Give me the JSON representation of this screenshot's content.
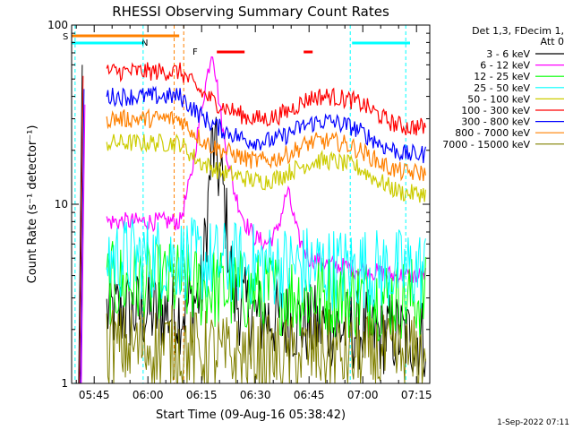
{
  "chart_data": {
    "type": "line",
    "title": "RHESSI Observing Summary Count Rates",
    "xlabel": "Start Time (09-Aug-16 05:38:42)",
    "ylabel": "Count Rate (s⁻¹ detector⁻¹)",
    "yscale": "log",
    "ylim": [
      1,
      100
    ],
    "y_ticks": [
      "1",
      "10",
      "100"
    ],
    "xlim": [
      "05:38:42",
      "07:18:42"
    ],
    "x_ticks": [
      "05:45",
      "06:00",
      "06:15",
      "06:30",
      "06:45",
      "07:00",
      "07:15"
    ],
    "grid": false,
    "legend_position": "right",
    "legend_header": [
      "Det 1,3, FDecim 1,",
      "Att 0"
    ],
    "footer_date": "1-Sep-2022 07:11",
    "flag_labels": {
      "saa": "S",
      "night": "N",
      "flare": "F"
    },
    "data_gap": [
      "05:41:00",
      "06:08:00"
    ],
    "series": [
      {
        "name": "3 - 6 keV",
        "color": "#000000",
        "x": [
          "06:09",
          "06:12",
          "06:15",
          "06:18",
          "06:21",
          "06:24",
          "06:27",
          "06:30",
          "06:33",
          "06:36",
          "06:39",
          "06:42",
          "06:45",
          "06:48",
          "06:51",
          "06:54",
          "06:57",
          "07:00",
          "07:03",
          "07:06",
          "07:09",
          "07:12"
        ],
        "values": [
          2.5,
          2.8,
          3.2,
          22,
          12,
          3.0,
          2.6,
          2.4,
          2.3,
          2.3,
          2.2,
          2.2,
          2.1,
          2.1,
          2.1,
          2.0,
          2.0,
          2.0,
          1.9,
          1.9,
          1.9,
          1.8
        ]
      },
      {
        "name": "6 - 12 keV",
        "color": "#ff00ff",
        "x": [
          "06:09",
          "06:12",
          "06:15",
          "06:18",
          "06:21",
          "06:24",
          "06:27",
          "06:30",
          "06:33",
          "06:36",
          "06:39",
          "06:42",
          "06:45",
          "06:48",
          "06:51",
          "06:54",
          "06:57",
          "07:00",
          "07:03",
          "07:06",
          "07:09",
          "07:12"
        ],
        "values": [
          8,
          14,
          35,
          75,
          25,
          12,
          8,
          6.5,
          6,
          7,
          12,
          6.5,
          5,
          4.8,
          4.6,
          4.5,
          4.4,
          4.3,
          4.2,
          4.1,
          4.0,
          4.0
        ]
      },
      {
        "name": "12 - 25 keV",
        "color": "#00ff00",
        "x": [
          "06:09",
          "06:12",
          "06:15",
          "06:18",
          "06:21",
          "06:24",
          "06:27",
          "06:30",
          "06:33",
          "06:36",
          "06:39",
          "06:42",
          "06:45",
          "06:48",
          "06:51",
          "06:54",
          "06:57",
          "07:00",
          "07:03",
          "07:06",
          "07:09",
          "07:12"
        ],
        "values": [
          3.6,
          3.5,
          3.4,
          3.4,
          3.3,
          3.3,
          3.3,
          3.2,
          3.2,
          3.2,
          3.2,
          3.1,
          3.1,
          3.1,
          3.1,
          3.1,
          3.0,
          3.0,
          3.0,
          3.0,
          3.0,
          3.0
        ]
      },
      {
        "name": "25 - 50 keV",
        "color": "#00ffff",
        "x": [
          "06:09",
          "06:12",
          "06:15",
          "06:18",
          "06:21",
          "06:24",
          "06:27",
          "06:30",
          "06:33",
          "06:36",
          "06:39",
          "06:42",
          "06:45",
          "06:48",
          "06:51",
          "06:54",
          "06:57",
          "07:00",
          "07:03",
          "07:06",
          "07:09",
          "07:12"
        ],
        "values": [
          5.0,
          4.9,
          4.8,
          4.8,
          4.7,
          4.7,
          4.6,
          4.6,
          4.6,
          4.5,
          4.5,
          4.5,
          4.5,
          4.5,
          4.4,
          4.4,
          4.4,
          4.4,
          4.3,
          4.3,
          4.3,
          4.3
        ]
      },
      {
        "name": "50 - 100 keV",
        "color": "#cccc00",
        "x": [
          "06:09",
          "06:12",
          "06:15",
          "06:18",
          "06:21",
          "06:24",
          "06:27",
          "06:30",
          "06:33",
          "06:36",
          "06:39",
          "06:42",
          "06:45",
          "06:48",
          "06:51",
          "06:54",
          "06:57",
          "07:00",
          "07:03",
          "07:06",
          "07:09",
          "07:12"
        ],
        "values": [
          22,
          19,
          17,
          16,
          15,
          14.5,
          14,
          13.5,
          13.5,
          14,
          15,
          16,
          17,
          17.5,
          17.5,
          17,
          16.5,
          15.5,
          14,
          13,
          12,
          11.5
        ]
      },
      {
        "name": "100 - 300 keV",
        "color": "#ff0000",
        "x": [
          "06:09",
          "06:12",
          "06:15",
          "06:18",
          "06:21",
          "06:24",
          "06:27",
          "06:30",
          "06:33",
          "06:36",
          "06:39",
          "06:42",
          "06:45",
          "06:48",
          "06:51",
          "06:54",
          "06:57",
          "07:00",
          "07:03",
          "07:06",
          "07:09",
          "07:12"
        ],
        "values": [
          55,
          48,
          42,
          38,
          35,
          33,
          31,
          30,
          30,
          31,
          33,
          36,
          39,
          40,
          40,
          39,
          38,
          36,
          33,
          30,
          28,
          27
        ]
      },
      {
        "name": "300 - 800 keV",
        "color": "#0000ff",
        "x": [
          "06:09",
          "06:12",
          "06:15",
          "06:18",
          "06:21",
          "06:24",
          "06:27",
          "06:30",
          "06:33",
          "06:36",
          "06:39",
          "06:42",
          "06:45",
          "06:48",
          "06:51",
          "06:54",
          "06:57",
          "07:00",
          "07:03",
          "07:06",
          "07:09",
          "07:12"
        ],
        "values": [
          40,
          35,
          31,
          28,
          26,
          24.5,
          23,
          22.5,
          22.5,
          23,
          24.5,
          26.5,
          28,
          29,
          29,
          28,
          27,
          25,
          23,
          21,
          20,
          19
        ]
      },
      {
        "name": "800 - 7000 keV",
        "color": "#ff8000",
        "x": [
          "06:09",
          "06:12",
          "06:15",
          "06:18",
          "06:21",
          "06:24",
          "06:27",
          "06:30",
          "06:33",
          "06:36",
          "06:39",
          "06:42",
          "06:45",
          "06:48",
          "06:51",
          "06:54",
          "06:57",
          "07:00",
          "07:03",
          "07:06",
          "07:09",
          "07:12"
        ],
        "values": [
          30,
          26,
          23,
          21,
          20,
          19,
          18,
          17.5,
          17.5,
          18,
          19,
          20.5,
          22,
          22.5,
          22.5,
          22,
          21,
          19.5,
          18,
          16.5,
          15.5,
          15
        ]
      },
      {
        "name": "7000 - 15000 keV",
        "color": "#808000",
        "x": [
          "06:09",
          "06:12",
          "06:15",
          "06:18",
          "06:21",
          "06:24",
          "06:27",
          "06:30",
          "06:33",
          "06:36",
          "06:39",
          "06:42",
          "06:45",
          "06:48",
          "06:51",
          "06:54",
          "06:57",
          "07:00",
          "07:03",
          "07:06",
          "07:09",
          "07:12"
        ],
        "values": [
          1.6,
          1.5,
          1.5,
          1.5,
          1.4,
          1.4,
          1.4,
          1.4,
          1.4,
          1.4,
          1.4,
          1.4,
          1.5,
          1.5,
          1.5,
          1.4,
          1.4,
          1.4,
          1.4,
          1.4,
          1.4,
          1.4
        ]
      }
    ]
  }
}
